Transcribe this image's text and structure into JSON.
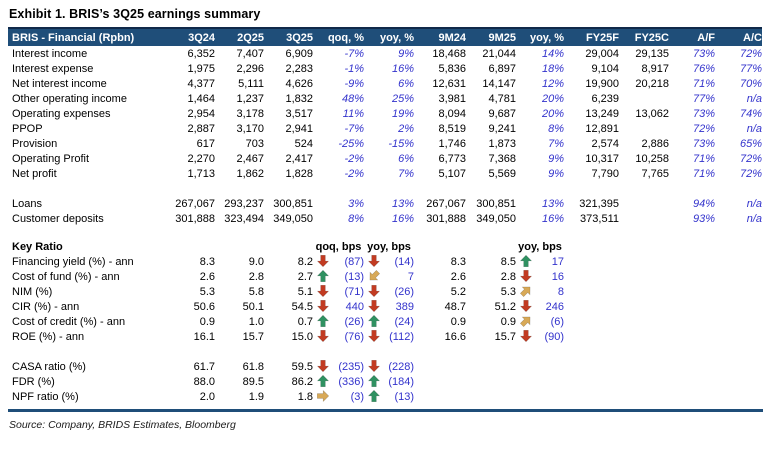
{
  "title": "Exhibit 1. BRIS’s 3Q25 earnings summary",
  "source": "Source: Company, BRIDS Estimates, Bloomberg",
  "colors": {
    "header_bg": "#1F4E79",
    "header_text": "#FFFFFF",
    "accent_blue_text": "#3333CC",
    "arrow_red": "#C23B22",
    "arrow_green": "#2F9161",
    "arrow_tan": "#D8A957"
  },
  "financial_table": {
    "header": [
      "BRIS - Financial (Rpbn)",
      "3Q24",
      "2Q25",
      "3Q25",
      "qoq, %",
      "yoy, %",
      "9M24",
      "9M25",
      "yoy, %",
      "FY25F",
      "FY25C",
      "A/F",
      "A/C"
    ],
    "rows": [
      {
        "label": "Interest income",
        "values": [
          "6,352",
          "7,407",
          "6,909",
          "-7%",
          "9%",
          "18,468",
          "21,044",
          "14%",
          "29,004",
          "29,135",
          "73%",
          "72%"
        ]
      },
      {
        "label": "Interest expense",
        "values": [
          "1,975",
          "2,296",
          "2,283",
          "-1%",
          "16%",
          "5,836",
          "6,897",
          "18%",
          "9,104",
          "8,917",
          "76%",
          "77%"
        ]
      },
      {
        "label": "Net interest income",
        "values": [
          "4,377",
          "5,111",
          "4,626",
          "-9%",
          "6%",
          "12,631",
          "14,147",
          "12%",
          "19,900",
          "20,218",
          "71%",
          "70%"
        ]
      },
      {
        "label": "Other operating income",
        "values": [
          "1,464",
          "1,237",
          "1,832",
          "48%",
          "25%",
          "3,981",
          "4,781",
          "20%",
          "6,239",
          "",
          "77%",
          "n/a"
        ]
      },
      {
        "label": "Operating expenses",
        "values": [
          "2,954",
          "3,178",
          "3,517",
          "11%",
          "19%",
          "8,094",
          "9,687",
          "20%",
          "13,249",
          "13,062",
          "73%",
          "74%"
        ]
      },
      {
        "label": "PPOP",
        "values": [
          "2,887",
          "3,170",
          "2,941",
          "-7%",
          "2%",
          "8,519",
          "9,241",
          "8%",
          "12,891",
          "",
          "72%",
          "n/a"
        ]
      },
      {
        "label": "Provision",
        "values": [
          "617",
          "703",
          "524",
          "-25%",
          "-15%",
          "1,746",
          "1,873",
          "7%",
          "2,574",
          "2,886",
          "73%",
          "65%"
        ]
      },
      {
        "label": "Operating Profit",
        "values": [
          "2,270",
          "2,467",
          "2,417",
          "-2%",
          "6%",
          "6,773",
          "7,368",
          "9%",
          "10,317",
          "10,258",
          "71%",
          "72%"
        ]
      },
      {
        "label": "Net profit",
        "values": [
          "1,713",
          "1,862",
          "1,828",
          "-2%",
          "7%",
          "5,107",
          "5,569",
          "9%",
          "7,790",
          "7,765",
          "71%",
          "72%"
        ]
      },
      {
        "spacer": true
      },
      {
        "label": "Loans",
        "values": [
          "267,067",
          "293,237",
          "300,851",
          "3%",
          "13%",
          "267,067",
          "300,851",
          "13%",
          "321,395",
          "",
          "94%",
          "n/a"
        ]
      },
      {
        "label": "Customer deposits",
        "values": [
          "301,888",
          "323,494",
          "349,050",
          "8%",
          "16%",
          "301,888",
          "349,050",
          "16%",
          "373,511",
          "",
          "93%",
          "n/a"
        ]
      }
    ]
  },
  "key_ratio": {
    "section_label": "Key Ratio",
    "col_labels": {
      "qoq": "qoq, bps",
      "yoy": "yoy, bps",
      "yoy2": "yoy, bps"
    },
    "rows": [
      {
        "label": "Financing yield (%) - ann",
        "v1": "8.3",
        "v2": "9.0",
        "v3": "8.2",
        "qoq_arrow": "down",
        "qoq": "(87)",
        "yoy_arrow": "down",
        "yoy": "(14)",
        "m1": "8.3",
        "m2": "8.5",
        "yoy2_arrow": "up",
        "yoy2": "17"
      },
      {
        "label": "Cost of fund (%) - ann",
        "v1": "2.6",
        "v2": "2.8",
        "v3": "2.7",
        "qoq_arrow": "up",
        "qoq": "(13)",
        "yoy_arrow": "sw",
        "yoy": "7",
        "m1": "2.6",
        "m2": "2.8",
        "yoy2_arrow": "down",
        "yoy2": "16"
      },
      {
        "label": "NIM (%)",
        "v1": "5.3",
        "v2": "5.8",
        "v3": "5.1",
        "qoq_arrow": "down",
        "qoq": "(71)",
        "yoy_arrow": "down",
        "yoy": "(26)",
        "m1": "5.2",
        "m2": "5.3",
        "yoy2_arrow": "ne",
        "yoy2": "8"
      },
      {
        "label": "CIR (%) - ann",
        "v1": "50.6",
        "v2": "50.1",
        "v3": "54.5",
        "qoq_arrow": "down",
        "qoq": "440",
        "yoy_arrow": "down",
        "yoy": "389",
        "m1": "48.7",
        "m2": "51.2",
        "yoy2_arrow": "down",
        "yoy2": "246"
      },
      {
        "label": "Cost of credit (%) - ann",
        "v1": "0.9",
        "v2": "1.0",
        "v3": "0.7",
        "qoq_arrow": "up",
        "qoq": "(26)",
        "yoy_arrow": "up",
        "yoy": "(24)",
        "m1": "0.9",
        "m2": "0.9",
        "yoy2_arrow": "ne",
        "yoy2": "(6)"
      },
      {
        "label": "ROE (%) - ann",
        "v1": "16.1",
        "v2": "15.7",
        "v3": "15.0",
        "qoq_arrow": "down",
        "qoq": "(76)",
        "yoy_arrow": "down",
        "yoy": "(112)",
        "m1": "16.6",
        "m2": "15.7",
        "yoy2_arrow": "down",
        "yoy2": "(90)"
      },
      {
        "spacer": true
      },
      {
        "label": "CASA ratio (%)",
        "v1": "61.7",
        "v2": "61.8",
        "v3": "59.5",
        "qoq_arrow": "down",
        "qoq": "(235)",
        "yoy_arrow": "down",
        "yoy": "(228)"
      },
      {
        "label": "FDR (%)",
        "v1": "88.0",
        "v2": "89.5",
        "v3": "86.2",
        "qoq_arrow": "up",
        "qoq": "(336)",
        "yoy_arrow": "up",
        "yoy": "(184)"
      },
      {
        "label": "NPF ratio (%)",
        "v1": "2.0",
        "v2": "1.9",
        "v3": "1.8",
        "qoq_arrow": "right",
        "qoq": "(3)",
        "yoy_arrow": "up",
        "yoy": "(13)"
      }
    ]
  }
}
